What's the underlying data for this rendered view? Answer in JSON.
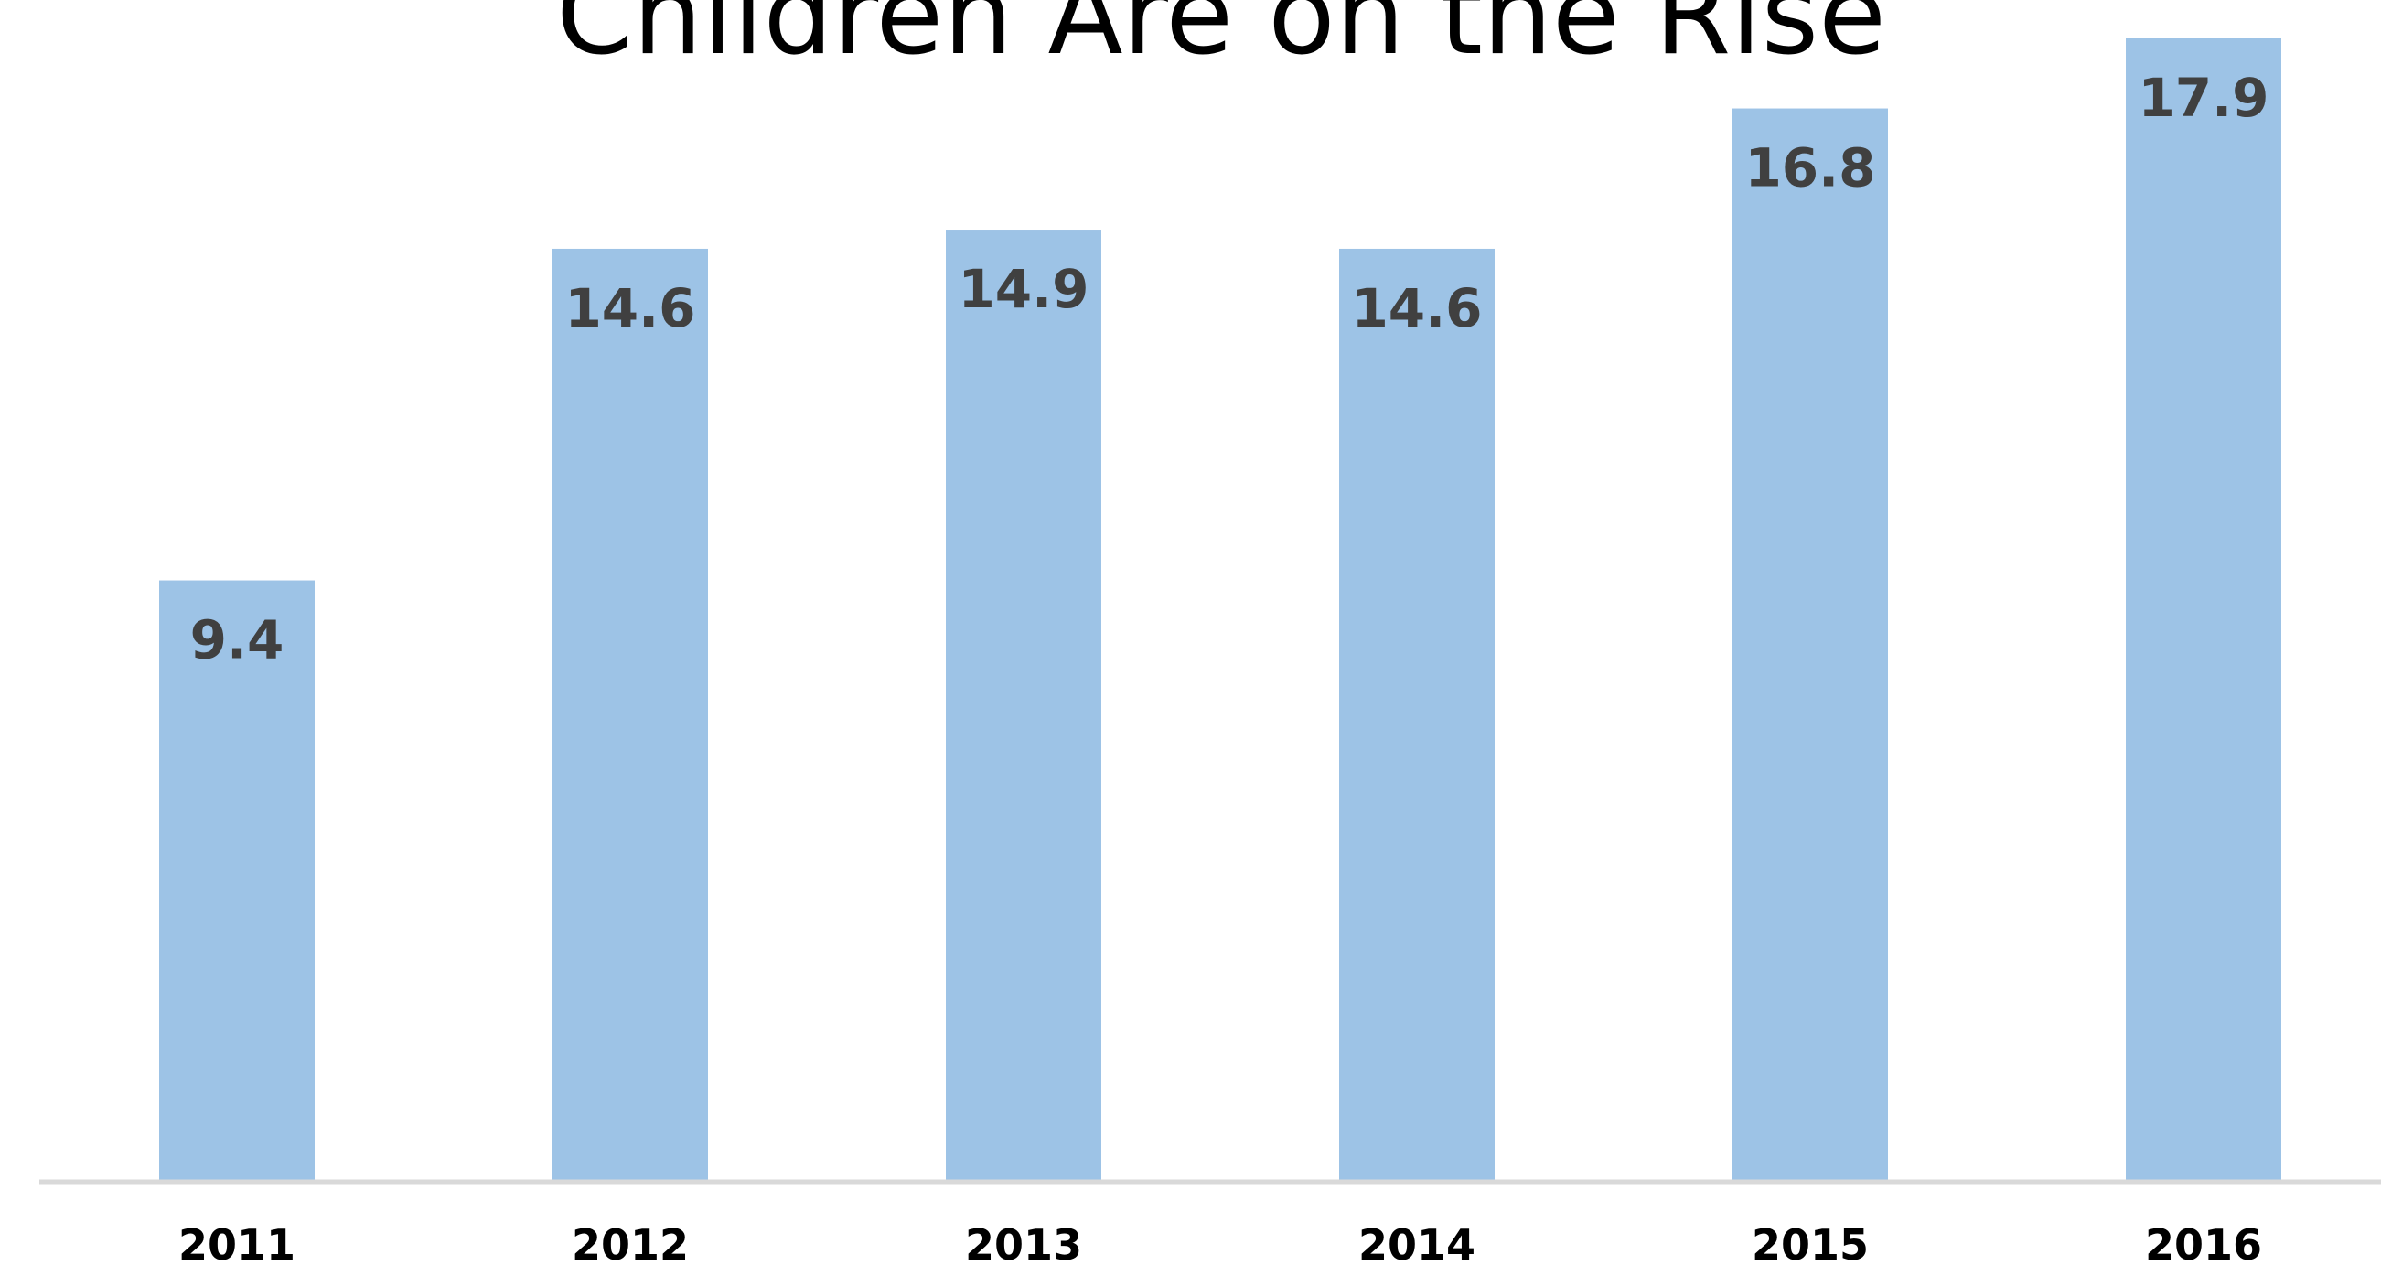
{
  "chart_data": {
    "type": "bar",
    "title": "Children Are on the Rise",
    "categories": [
      "2011",
      "2012",
      "2013",
      "2014",
      "2015",
      "2016"
    ],
    "values": [
      9.4,
      14.6,
      14.9,
      14.6,
      16.8,
      17.9
    ],
    "value_labels": [
      "9.4",
      "14.6",
      "14.9",
      "14.6",
      "16.8",
      "17.9"
    ],
    "xlabel": "",
    "ylabel": "",
    "ylim": [
      0,
      18.5
    ],
    "grid": false,
    "legend": "none",
    "colors": {
      "bar": "#9dc3e6",
      "axis": "#d9d9d9",
      "label": "#404040"
    }
  }
}
